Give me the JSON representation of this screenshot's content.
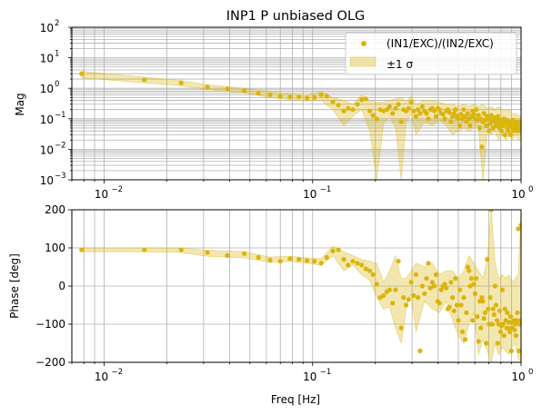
{
  "chart_data": [
    {
      "type": "scatter",
      "title": "INP1 P unbiased OLG",
      "xlabel": "",
      "ylabel": "Mag",
      "xscale": "log",
      "yscale": "log",
      "xlim": [
        0.007,
        1.0
      ],
      "ylim": [
        0.001,
        100
      ],
      "x_ticks": [
        0.01,
        0.1,
        1
      ],
      "x_tick_labels": [
        "10",
        "10",
        "10"
      ],
      "x_tick_exps": [
        "−2",
        "−1",
        "0"
      ],
      "y_ticks": [
        0.001,
        0.01,
        0.1,
        1,
        10,
        100
      ],
      "y_tick_labels": [
        "10",
        "10",
        "10",
        "10",
        "10",
        "10"
      ],
      "y_tick_exps": [
        "−3",
        "−2",
        "−1",
        "0",
        "1",
        "2"
      ],
      "grid": true,
      "legend_position": "top-right",
      "series": [
        {
          "name": "(IN1/EXC)/(IN2/EXC)",
          "color": "#dbb40c",
          "x": [
            0.0078,
            0.0156,
            0.0234,
            0.0313,
            0.039,
            0.047,
            0.055,
            0.0625,
            0.07,
            0.078,
            0.086,
            0.094,
            0.102,
            0.11,
            0.117,
            0.125,
            0.133,
            0.141,
            0.148,
            0.156,
            0.164,
            0.172,
            0.18,
            0.188,
            0.195,
            0.203,
            0.211,
            0.219,
            0.227,
            0.234,
            0.242,
            0.25,
            0.258,
            0.266,
            0.273,
            0.281,
            0.289,
            0.297,
            0.305,
            0.313,
            0.32,
            0.328,
            0.336,
            0.344,
            0.352,
            0.359,
            0.367,
            0.375,
            0.383,
            0.391,
            0.398,
            0.406,
            0.414,
            0.422,
            0.43,
            0.438,
            0.445,
            0.453,
            0.461,
            0.469,
            0.477,
            0.484,
            0.492,
            0.5,
            0.508,
            0.516,
            0.523,
            0.531,
            0.539,
            0.547,
            0.555,
            0.563,
            0.57,
            0.578,
            0.586,
            0.594,
            0.602,
            0.609,
            0.617,
            0.625,
            0.633,
            0.641,
            0.648,
            0.656,
            0.664,
            0.672,
            0.68,
            0.688,
            0.695,
            0.703,
            0.711,
            0.719,
            0.727,
            0.734,
            0.742,
            0.75,
            0.758,
            0.766,
            0.773,
            0.781,
            0.789,
            0.797,
            0.805,
            0.813,
            0.82,
            0.828,
            0.836,
            0.844,
            0.852,
            0.859,
            0.867,
            0.875,
            0.883,
            0.891,
            0.898,
            0.906,
            0.914,
            0.922,
            0.93,
            0.938,
            0.945,
            0.953,
            0.961,
            0.969,
            0.977,
            0.984,
            0.992,
            1.0
          ],
          "y": [
            3.0,
            1.9,
            1.5,
            1.1,
            0.95,
            0.82,
            0.68,
            0.62,
            0.55,
            0.52,
            0.52,
            0.48,
            0.5,
            0.62,
            0.55,
            0.36,
            0.28,
            0.18,
            0.22,
            0.2,
            0.3,
            0.42,
            0.45,
            0.18,
            0.13,
            0.1,
            0.2,
            0.18,
            0.2,
            0.25,
            0.15,
            0.22,
            0.3,
            0.08,
            0.2,
            0.18,
            0.22,
            0.35,
            0.18,
            0.12,
            0.2,
            0.15,
            0.25,
            0.18,
            0.15,
            0.1,
            0.2,
            0.22,
            0.18,
            0.12,
            0.22,
            0.2,
            0.15,
            0.14,
            0.1,
            0.18,
            0.2,
            0.16,
            0.08,
            0.12,
            0.15,
            0.2,
            0.12,
            0.1,
            0.06,
            0.14,
            0.1,
            0.2,
            0.12,
            0.08,
            0.15,
            0.1,
            0.06,
            0.12,
            0.18,
            0.14,
            0.1,
            0.2,
            0.09,
            0.13,
            0.05,
            0.1,
            0.012,
            0.08,
            0.15,
            0.09,
            0.06,
            0.12,
            0.1,
            0.04,
            0.07,
            0.13,
            0.09,
            0.05,
            0.11,
            0.08,
            0.06,
            0.1,
            0.12,
            0.07,
            0.05,
            0.09,
            0.04,
            0.08,
            0.06,
            0.1,
            0.03,
            0.07,
            0.09,
            0.05,
            0.04,
            0.08,
            0.06,
            0.03,
            0.07,
            0.05,
            0.09,
            0.04,
            0.06,
            0.08,
            0.05,
            0.07,
            0.04,
            0.06,
            0.05,
            0.08,
            0.04,
            0.06
          ]
        },
        {
          "name": "±1 σ",
          "type": "band",
          "color": "#dbb40c",
          "x": [
            0.0078,
            0.0156,
            0.0234,
            0.0313,
            0.047,
            0.0625,
            0.078,
            0.094,
            0.11,
            0.125,
            0.141,
            0.156,
            0.172,
            0.188,
            0.203,
            0.219,
            0.234,
            0.25,
            0.266,
            0.281,
            0.297,
            0.313,
            0.344,
            0.375,
            0.406,
            0.438,
            0.469,
            0.5,
            0.531,
            0.563,
            0.594,
            0.625,
            0.656,
            0.688,
            0.719,
            0.75,
            0.781,
            0.813,
            0.844,
            0.875,
            0.906,
            0.938,
            0.969,
            1.0
          ],
          "lower": [
            2.2,
            1.5,
            1.2,
            0.9,
            0.7,
            0.5,
            0.42,
            0.38,
            0.4,
            0.2,
            0.06,
            0.12,
            0.2,
            0.04,
            0.001,
            0.07,
            0.12,
            0.05,
            0.001,
            0.08,
            0.15,
            0.03,
            0.08,
            0.06,
            0.09,
            0.06,
            0.03,
            0.04,
            0.05,
            0.04,
            0.05,
            0.05,
            0.001,
            0.04,
            0.03,
            0.04,
            0.02,
            0.03,
            0.02,
            0.03,
            0.02,
            0.03,
            0.02,
            0.02
          ],
          "upper": [
            3.6,
            2.3,
            1.8,
            1.3,
            1.0,
            0.8,
            0.65,
            0.6,
            0.8,
            0.5,
            0.4,
            0.3,
            0.6,
            0.4,
            0.35,
            0.35,
            0.4,
            0.45,
            0.5,
            0.35,
            0.55,
            0.3,
            0.4,
            0.4,
            0.35,
            0.3,
            0.3,
            0.25,
            0.3,
            0.25,
            0.3,
            0.25,
            0.3,
            0.22,
            0.25,
            0.2,
            0.25,
            0.2,
            0.18,
            0.2,
            0.15,
            0.15,
            0.14,
            0.12
          ]
        }
      ]
    },
    {
      "type": "scatter",
      "title": "",
      "xlabel": "Freq [Hz]",
      "ylabel": "Phase [deg]",
      "xscale": "log",
      "yscale": "linear",
      "xlim": [
        0.007,
        1.0
      ],
      "ylim": [
        -200,
        200
      ],
      "x_ticks": [
        0.01,
        0.1,
        1
      ],
      "x_tick_labels": [
        "10",
        "10",
        "10"
      ],
      "x_tick_exps": [
        "−2",
        "−1",
        "0"
      ],
      "y_ticks": [
        -200,
        -100,
        0,
        100,
        200
      ],
      "y_tick_labels": [
        "−200",
        "−100",
        "0",
        "100",
        "200"
      ],
      "grid": true,
      "series": [
        {
          "name": "",
          "color": "#dbb40c",
          "x": [
            0.0078,
            0.0156,
            0.0234,
            0.0313,
            0.039,
            0.047,
            0.055,
            0.0625,
            0.07,
            0.078,
            0.086,
            0.094,
            0.102,
            0.11,
            0.117,
            0.125,
            0.133,
            0.141,
            0.148,
            0.156,
            0.164,
            0.172,
            0.18,
            0.188,
            0.195,
            0.203,
            0.211,
            0.219,
            0.227,
            0.234,
            0.242,
            0.25,
            0.258,
            0.266,
            0.273,
            0.281,
            0.289,
            0.297,
            0.305,
            0.313,
            0.32,
            0.328,
            0.336,
            0.344,
            0.352,
            0.359,
            0.367,
            0.375,
            0.383,
            0.391,
            0.398,
            0.406,
            0.414,
            0.422,
            0.43,
            0.438,
            0.445,
            0.453,
            0.461,
            0.469,
            0.477,
            0.484,
            0.492,
            0.5,
            0.508,
            0.516,
            0.523,
            0.531,
            0.539,
            0.547,
            0.555,
            0.563,
            0.57,
            0.578,
            0.586,
            0.594,
            0.602,
            0.609,
            0.617,
            0.625,
            0.633,
            0.641,
            0.648,
            0.656,
            0.664,
            0.672,
            0.68,
            0.688,
            0.695,
            0.703,
            0.711,
            0.719,
            0.727,
            0.734,
            0.742,
            0.75,
            0.758,
            0.766,
            0.773,
            0.781,
            0.789,
            0.797,
            0.805,
            0.813,
            0.82,
            0.828,
            0.836,
            0.844,
            0.852,
            0.859,
            0.867,
            0.875,
            0.883,
            0.891,
            0.898,
            0.906,
            0.914,
            0.922,
            0.93,
            0.938,
            0.945,
            0.953,
            0.961,
            0.969,
            0.977,
            0.984,
            0.992,
            1.0
          ],
          "y": [
            95,
            95,
            95,
            88,
            80,
            85,
            75,
            68,
            65,
            72,
            70,
            67,
            65,
            60,
            75,
            92,
            95,
            70,
            55,
            65,
            60,
            55,
            45,
            40,
            30,
            5,
            -30,
            -25,
            -15,
            -10,
            -45,
            -10,
            65,
            -110,
            -30,
            -50,
            -35,
            10,
            -25,
            30,
            -30,
            -170,
            0,
            -20,
            20,
            60,
            -5,
            10,
            0,
            30,
            -40,
            -45,
            -10,
            0,
            5,
            -5,
            -60,
            -55,
            10,
            -30,
            -65,
            20,
            -50,
            -90,
            -10,
            -50,
            -120,
            -30,
            -140,
            -70,
            50,
            40,
            0,
            20,
            -90,
            5,
            -20,
            20,
            -80,
            -145,
            -40,
            -110,
            -30,
            -40,
            -85,
            -70,
            -150,
            70,
            -60,
            -100,
            -30,
            200,
            -100,
            -60,
            -75,
            0,
            -50,
            -90,
            -150,
            -100,
            -65,
            -120,
            -105,
            -10,
            -100,
            -130,
            -60,
            -90,
            -110,
            -70,
            -110,
            -95,
            -120,
            -80,
            -170,
            -110,
            -95,
            -90,
            -115,
            -100,
            -130,
            -90,
            -70,
            150,
            -170,
            -100,
            -90,
            160
          ]
        },
        {
          "name": "±1 σ",
          "type": "band",
          "color": "#dbb40c",
          "x": [
            0.0078,
            0.0156,
            0.0234,
            0.0313,
            0.047,
            0.0625,
            0.078,
            0.094,
            0.11,
            0.125,
            0.141,
            0.156,
            0.172,
            0.188,
            0.203,
            0.219,
            0.234,
            0.25,
            0.266,
            0.281,
            0.297,
            0.313,
            0.344,
            0.375,
            0.406,
            0.438,
            0.469,
            0.5,
            0.531,
            0.563,
            0.594,
            0.625,
            0.656,
            0.688,
            0.719,
            0.75,
            0.781,
            0.813,
            0.844,
            0.875,
            0.906,
            0.938,
            0.969,
            1.0
          ],
          "lower": [
            90,
            90,
            88,
            78,
            74,
            62,
            65,
            60,
            55,
            80,
            40,
            55,
            30,
            15,
            -30,
            -60,
            -55,
            -110,
            -150,
            -60,
            -20,
            -120,
            -40,
            -60,
            -70,
            -40,
            -90,
            -130,
            -150,
            -100,
            -70,
            -180,
            -140,
            -170,
            -200,
            -150,
            -180,
            -160,
            -170,
            -180,
            -160,
            -150,
            -190,
            -200
          ],
          "upper": [
            100,
            100,
            100,
            94,
            90,
            76,
            78,
            74,
            72,
            105,
            90,
            80,
            70,
            65,
            60,
            10,
            40,
            80,
            20,
            20,
            40,
            60,
            50,
            60,
            30,
            40,
            40,
            20,
            40,
            80,
            60,
            40,
            20,
            70,
            200,
            60,
            20,
            30,
            20,
            30,
            10,
            20,
            30,
            200
          ]
        }
      ]
    }
  ]
}
